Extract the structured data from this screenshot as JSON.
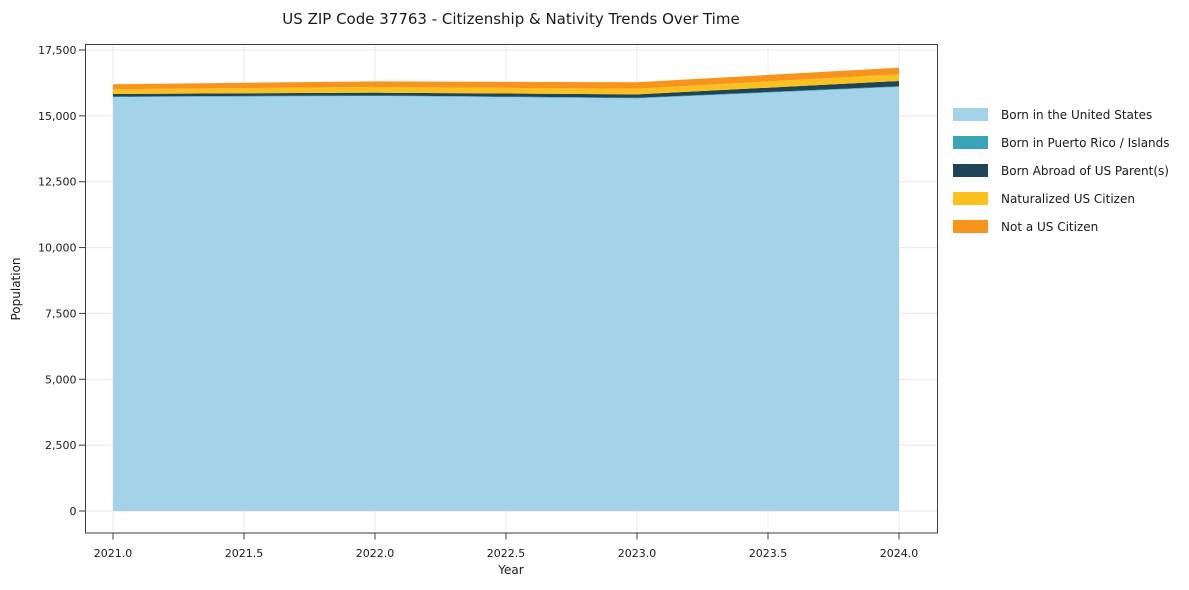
{
  "chart_data": {
    "type": "area",
    "stacked": true,
    "title": "US ZIP Code 37763 - Citizenship & Nativity Trends Over Time",
    "xlabel": "Year",
    "ylabel": "Population",
    "x": [
      2021,
      2022,
      2023,
      2024
    ],
    "series": [
      {
        "name": "Born in the United States",
        "color": "#A4D2E8",
        "values": [
          15715,
          15755,
          15665,
          16100
        ]
      },
      {
        "name": "Born in Puerto Rico / Islands",
        "color": "#39A3B8",
        "values": [
          20,
          20,
          20,
          25
        ]
      },
      {
        "name": "Born Abroad of US Parent(s)",
        "color": "#1F4456",
        "values": [
          95,
          105,
          130,
          200
        ]
      },
      {
        "name": "Naturalized US Citizen",
        "color": "#FBC11E",
        "values": [
          180,
          215,
          215,
          255
        ]
      },
      {
        "name": "Not a US Citizen",
        "color": "#F8941D",
        "values": [
          190,
          215,
          245,
          250
        ]
      }
    ],
    "xticks": {
      "values": [
        2021.0,
        2021.5,
        2022.0,
        2022.5,
        2023.0,
        2023.5,
        2024.0
      ],
      "labels": [
        "2021.0",
        "2021.5",
        "2022.0",
        "2022.5",
        "2023.0",
        "2023.5",
        "2024.0"
      ]
    },
    "yticks": {
      "values": [
        0,
        2500,
        5000,
        7500,
        10000,
        12500,
        15000,
        17500
      ],
      "labels": [
        "0",
        "2,500",
        "5,000",
        "7,500",
        "10,000",
        "12,500",
        "15,000",
        "17,500"
      ]
    },
    "ylim": [
      0,
      17500
    ],
    "grid": true,
    "legend_position": "right",
    "colors": {
      "grid": "#e8e8e8",
      "spine": "#3c3c3c",
      "text": "#1a1a1a",
      "background": "#ffffff"
    }
  }
}
